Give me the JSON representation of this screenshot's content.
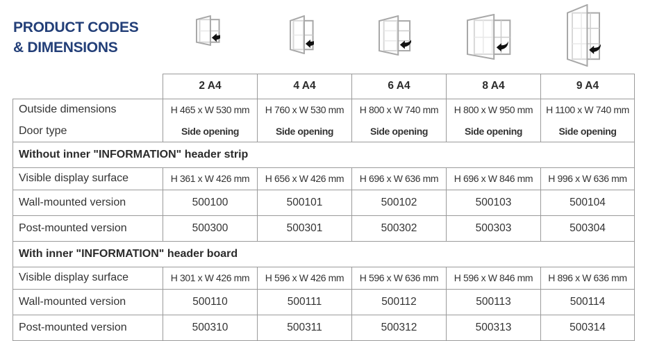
{
  "title": {
    "line1": "PRODUCT CODES",
    "line2": "& DIMENSIONS"
  },
  "products": [
    {
      "name": "2 A4",
      "grid": [
        1,
        2
      ],
      "outside": "H 465 x W 530 mm",
      "door": "Side opening"
    },
    {
      "name": "4 A4",
      "grid": [
        2,
        2
      ],
      "outside": "H 760 x W 530 mm",
      "door": "Side opening"
    },
    {
      "name": "6 A4",
      "grid": [
        2,
        3
      ],
      "outside": "H 800 x W 740 mm",
      "door": "Side opening"
    },
    {
      "name": "8 A4",
      "grid": [
        4,
        2
      ],
      "outside": "H 800 x W 950 mm",
      "door": "Side opening"
    },
    {
      "name": "9 A4",
      "grid": [
        3,
        3
      ],
      "outside": "H 1100 x W 740 mm",
      "door": "Side opening"
    }
  ],
  "row_labels": {
    "outside": "Outside dimensions",
    "door": "Door type"
  },
  "sections": [
    {
      "title": "Without inner \"INFORMATION\" header strip",
      "rows": [
        {
          "label": "Visible display surface",
          "type": "val",
          "values": [
            "H 361 x W 426 mm",
            "H 656 x W 426 mm",
            "H 696 x W 636 mm",
            "H 696 x W 846 mm",
            "H 996 x W 636 mm"
          ]
        },
        {
          "label": "Wall-mounted version",
          "type": "code",
          "values": [
            "500100",
            "500101",
            "500102",
            "500103",
            "500104"
          ]
        },
        {
          "label": "Post-mounted version",
          "type": "code",
          "values": [
            "500300",
            "500301",
            "500302",
            "500303",
            "500304"
          ]
        }
      ]
    },
    {
      "title": "With inner \"INFORMATION\" header board",
      "rows": [
        {
          "label": "Visible display surface",
          "type": "val",
          "values": [
            "H 301 x W 426 mm",
            "H 596 x W 426 mm",
            "H 596 x W 636 mm",
            "H 596 x W 846 mm",
            "H 896 x W 636 mm"
          ]
        },
        {
          "label": "Wall-mounted version",
          "type": "code",
          "values": [
            "500110",
            "500111",
            "500112",
            "500113",
            "500114"
          ]
        },
        {
          "label": "Post-mounted version",
          "type": "code",
          "values": [
            "500310",
            "500311",
            "500312",
            "500313",
            "500314"
          ]
        }
      ]
    }
  ],
  "colors": {
    "title": "#233f78",
    "frame": "#a8a8a8",
    "arrow": "#111111"
  }
}
